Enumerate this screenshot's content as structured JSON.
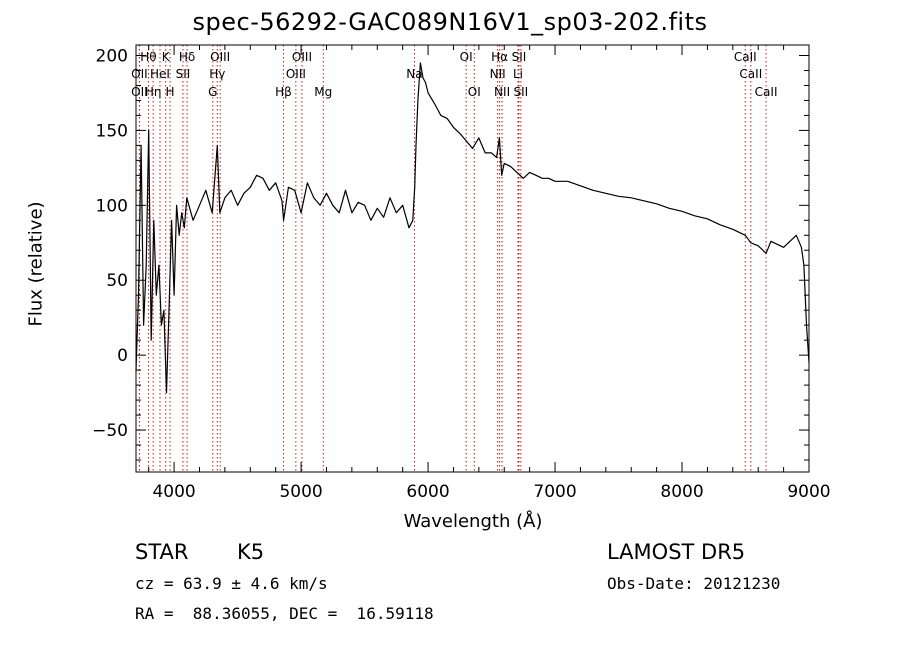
{
  "title": "spec-56292-GAC089N16V1_sp03-202.fits",
  "footer": {
    "object_class": "STAR",
    "subclass": "K5",
    "survey": "LAMOST DR5",
    "cz": "cz = 63.9 ± 4.6 km/s",
    "obs_date": "Obs-Date: 20121230",
    "radec": "RA =  88.36055, DEC =  16.59118"
  },
  "chart_data": {
    "type": "line",
    "title": "spec-56292-GAC089N16V1_sp03-202.fits",
    "xlabel": "Wavelength (Å)",
    "ylabel": "Flux (relative)",
    "xlim": [
      3700,
      9000
    ],
    "ylim": [
      -78,
      207
    ],
    "xticks": [
      4000,
      5000,
      6000,
      7000,
      8000,
      9000
    ],
    "yticks": [
      -50,
      0,
      50,
      100,
      150,
      200
    ],
    "colors": {
      "line": "#000000",
      "marker": "#b22222"
    },
    "series": [
      {
        "x": [
          3700,
          3720,
          3740,
          3760,
          3780,
          3800,
          3820,
          3840,
          3860,
          3880,
          3900,
          3920,
          3940,
          3960,
          3980,
          4000,
          4020,
          4040,
          4060,
          4080,
          4100,
          4150,
          4200,
          4250,
          4300,
          4340,
          4360,
          4400,
          4450,
          4500,
          4550,
          4600,
          4650,
          4700,
          4750,
          4800,
          4850,
          4862,
          4900,
          4950,
          5000,
          5050,
          5100,
          5150,
          5200,
          5250,
          5300,
          5350,
          5400,
          5450,
          5500,
          5550,
          5600,
          5650,
          5700,
          5750,
          5800,
          5850,
          5880,
          5895,
          5905,
          5920,
          5940,
          5960,
          5980,
          6000,
          6050,
          6100,
          6150,
          6200,
          6250,
          6300,
          6350,
          6400,
          6450,
          6500,
          6540,
          6562,
          6580,
          6600,
          6650,
          6700,
          6750,
          6800,
          6850,
          6900,
          6950,
          7000,
          7100,
          7200,
          7300,
          7400,
          7500,
          7600,
          7700,
          7800,
          7900,
          8000,
          8100,
          8200,
          8300,
          8400,
          8498,
          8542,
          8600,
          8662,
          8700,
          8800,
          8900,
          8940,
          8960,
          8980,
          9000
        ],
        "y": [
          -10,
          40,
          140,
          20,
          60,
          150,
          10,
          90,
          40,
          60,
          20,
          30,
          -25,
          30,
          90,
          40,
          100,
          80,
          95,
          85,
          105,
          90,
          100,
          110,
          95,
          140,
          95,
          105,
          110,
          100,
          108,
          112,
          120,
          118,
          110,
          115,
          103,
          90,
          112,
          110,
          95,
          115,
          105,
          100,
          108,
          100,
          95,
          110,
          95,
          102,
          100,
          90,
          98,
          92,
          105,
          95,
          100,
          85,
          90,
          112,
          140,
          170,
          195,
          185,
          182,
          175,
          168,
          160,
          158,
          152,
          148,
          143,
          138,
          145,
          135,
          135,
          132,
          145,
          120,
          128,
          126,
          122,
          118,
          122,
          120,
          118,
          118,
          116,
          116,
          113,
          110,
          108,
          106,
          105,
          103,
          101,
          98,
          96,
          93,
          91,
          87,
          84,
          80,
          75,
          73,
          68,
          76,
          72,
          80,
          72,
          60,
          20,
          -5
        ]
      }
    ],
    "lines": [
      {
        "name": "Hθ",
        "x": 3798,
        "row": 0
      },
      {
        "name": "K",
        "x": 3934,
        "row": 0
      },
      {
        "name": "Hδ",
        "x": 4102,
        "row": 0
      },
      {
        "name": "OIII",
        "x": 4363,
        "row": 0
      },
      {
        "name": "OIII",
        "x": 5007,
        "row": 0
      },
      {
        "name": "OI",
        "x": 6300,
        "row": 0
      },
      {
        "name": "Hα",
        "x": 6563,
        "row": 0
      },
      {
        "name": "SII",
        "x": 6716,
        "row": 0
      },
      {
        "name": "CaII",
        "x": 8498,
        "row": 0
      },
      {
        "name": "OII",
        "x": 3727,
        "row": 1
      },
      {
        "name": "HeI",
        "x": 3889,
        "row": 1
      },
      {
        "name": "SII",
        "x": 4070,
        "row": 1
      },
      {
        "name": "Hγ",
        "x": 4340,
        "row": 1
      },
      {
        "name": "OIII",
        "x": 4959,
        "row": 1
      },
      {
        "name": "Na",
        "x": 5893,
        "row": 1
      },
      {
        "name": "NII",
        "x": 6548,
        "row": 1
      },
      {
        "name": "Li",
        "x": 6708,
        "row": 1
      },
      {
        "name": "CaII",
        "x": 8542,
        "row": 1
      },
      {
        "name": "OII",
        "x": 3727,
        "row": 2
      },
      {
        "name": "Hη",
        "x": 3835,
        "row": 2
      },
      {
        "name": "H",
        "x": 3968,
        "row": 2
      },
      {
        "name": "G",
        "x": 4305,
        "row": 2
      },
      {
        "name": "Hβ",
        "x": 4861,
        "row": 2
      },
      {
        "name": "Mg",
        "x": 5175,
        "row": 2
      },
      {
        "name": "OI",
        "x": 6364,
        "row": 2
      },
      {
        "name": "NII",
        "x": 6583,
        "row": 2
      },
      {
        "name": "SII",
        "x": 6731,
        "row": 2
      },
      {
        "name": "CaII",
        "x": 8662,
        "row": 2
      }
    ]
  }
}
